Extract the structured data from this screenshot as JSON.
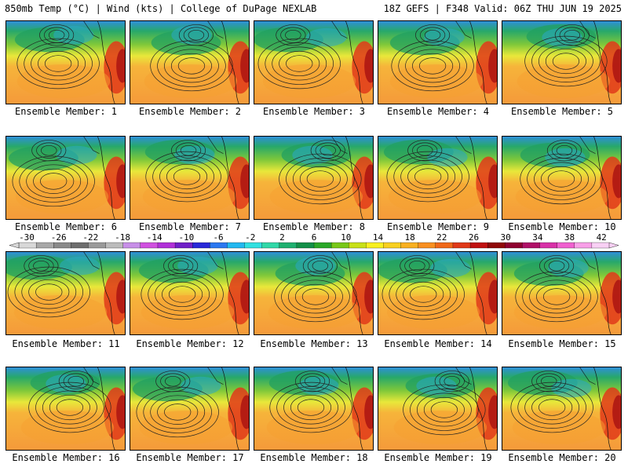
{
  "header": {
    "left": "850mb Temp (°C) | Wind (kts) | College of DuPage NEXLAB",
    "right": "18Z GEFS | F348 Valid: 06Z THU JUN 19 2025"
  },
  "caption_prefix": "Ensemble Member: ",
  "members": [
    1,
    2,
    3,
    4,
    5,
    6,
    7,
    8,
    9,
    10,
    11,
    12,
    13,
    14,
    15,
    16,
    17,
    18,
    19,
    20
  ],
  "colorbar": {
    "labels": [
      "-30",
      "-26",
      "-22",
      "-18",
      "-14",
      "-10",
      "-6",
      "-2",
      "2",
      "6",
      "10",
      "14",
      "18",
      "22",
      "26",
      "30",
      "34",
      "38",
      "42"
    ],
    "colors": [
      "#d8d8d8",
      "#a8a8a8",
      "#8a8a8a",
      "#6e6e6e",
      "#9a9a9a",
      "#bcbcbc",
      "#c890e8",
      "#d050e0",
      "#b030d8",
      "#7020c8",
      "#2828d8",
      "#2a78f0",
      "#22b8f0",
      "#30e0e0",
      "#30d8a8",
      "#1eb070",
      "#129048",
      "#2aa828",
      "#78c818",
      "#c8e018",
      "#f8f020",
      "#f8d020",
      "#f8b020",
      "#f89020",
      "#f06818",
      "#e03818",
      "#c01010",
      "#900808",
      "#900030",
      "#b01068",
      "#d830a8",
      "#f060d0",
      "#f8a0e8",
      "#f8d0f4"
    ]
  }
}
